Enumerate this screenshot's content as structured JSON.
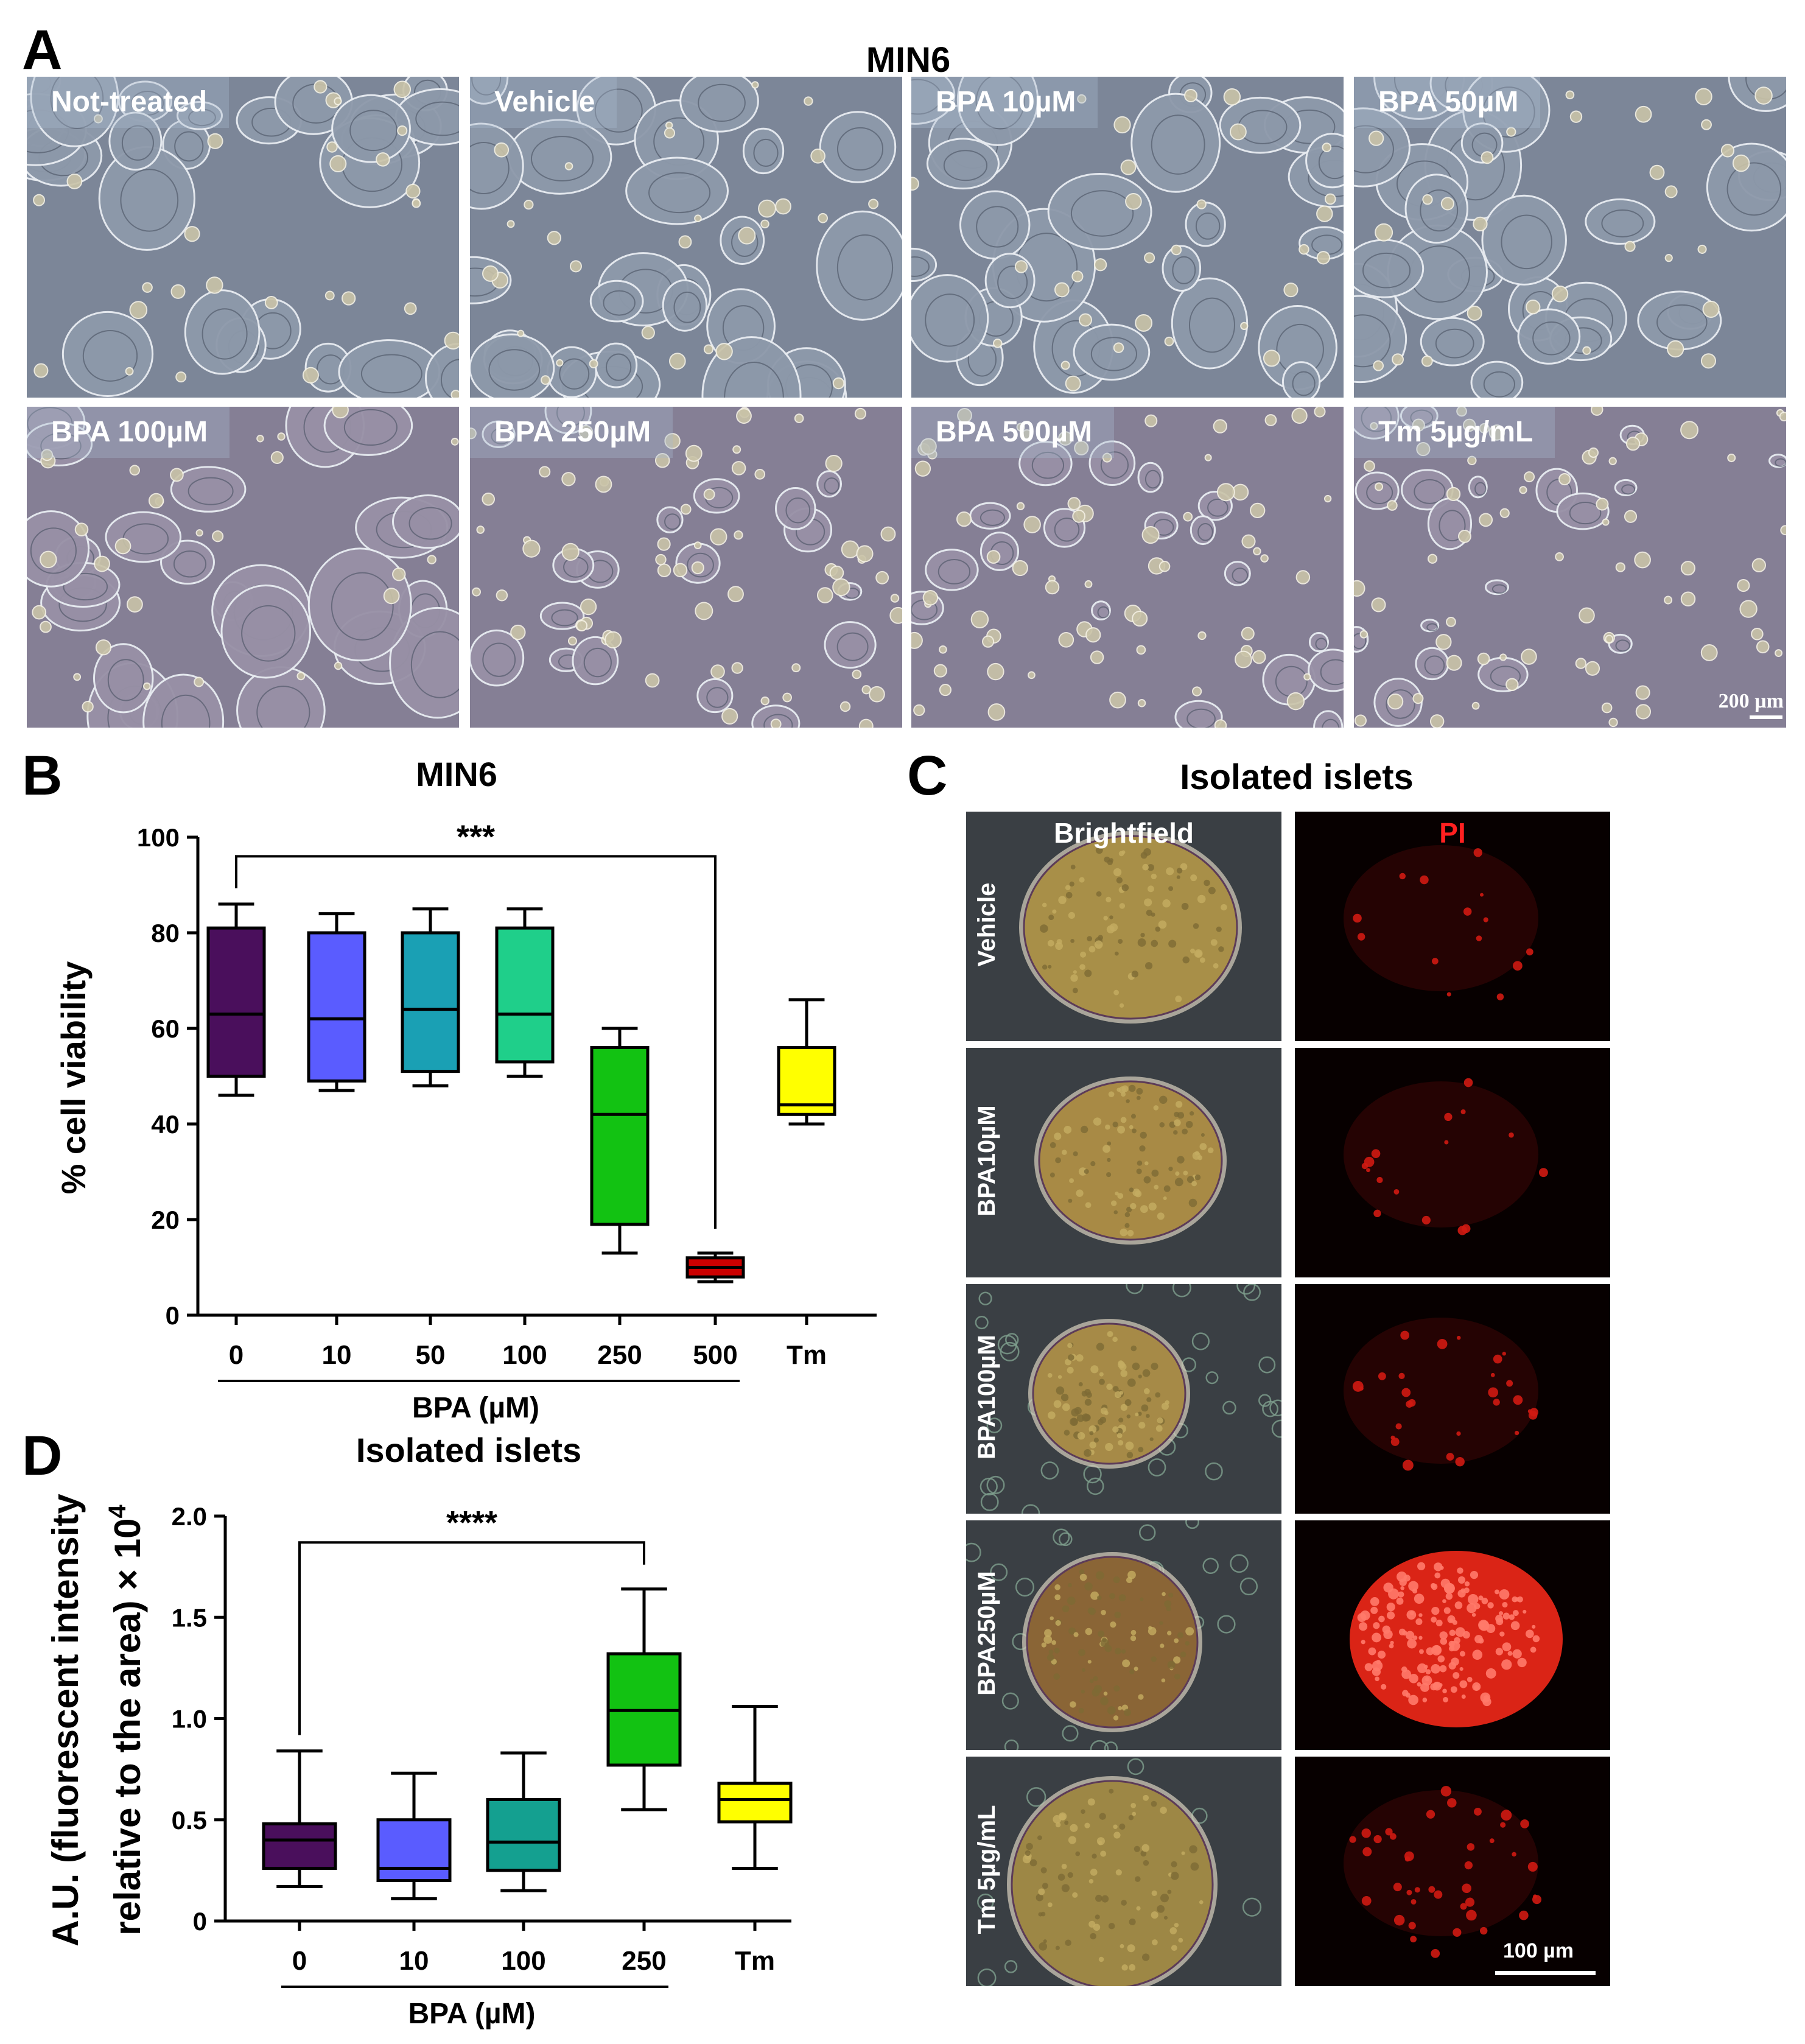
{
  "panel_A": {
    "letter": "A",
    "title": "MIN6",
    "image_labels": [
      "Not-treated",
      "Vehicle",
      "BPA 10µM",
      "BPA 50µM",
      "BPA 100µM",
      "BPA 250µM",
      "BPA 500µM",
      "Tm 5µg/mL"
    ],
    "scale_bar": "200 µm"
  },
  "panel_C": {
    "letter": "C",
    "title": "Isolated islets",
    "col_brightfield": "Brightfield",
    "col_pi": "PI",
    "rows": [
      "Vehicle",
      "BPA10µM",
      "BPA100µM",
      "BPA250µM",
      "Tm 5µg/mL"
    ],
    "scale_bar": "100 µm",
    "pi_color": "#ff2a1a"
  },
  "chart_data": [
    {
      "panel": "B",
      "type": "box",
      "title": "MIN6",
      "ylabel": "% cell viability",
      "xlabel": "BPA (µM)",
      "categories": [
        "0",
        "10",
        "50",
        "100",
        "250",
        "500",
        "Tm"
      ],
      "yticks": [
        "0",
        "20",
        "40",
        "60",
        "80",
        "100"
      ],
      "ylim": [
        0,
        100
      ],
      "boxes": [
        {
          "min": 46,
          "q1": 50,
          "median": 63,
          "q3": 81,
          "max": 86,
          "color": "#4a0f5c"
        },
        {
          "min": 47,
          "q1": 49,
          "median": 62,
          "q3": 80,
          "max": 84,
          "color": "#5a5cff"
        },
        {
          "min": 48,
          "q1": 51,
          "median": 64,
          "q3": 80,
          "max": 85,
          "color": "#1aa0b4"
        },
        {
          "min": 50,
          "q1": 53,
          "median": 63,
          "q3": 81,
          "max": 85,
          "color": "#1fcf8a"
        },
        {
          "min": 13,
          "q1": 19,
          "median": 42,
          "q3": 56,
          "max": 60,
          "color": "#12c212"
        },
        {
          "min": 7,
          "q1": 8,
          "median": 10,
          "q3": 12,
          "max": 13,
          "color": "#cc0000"
        },
        {
          "min": 40,
          "q1": 42,
          "median": 44,
          "q3": 56,
          "max": 66,
          "color": "#ffff00"
        }
      ],
      "significance": {
        "label": "***",
        "from": "0",
        "to": "500",
        "y": 96
      },
      "bracket_span": [
        "0",
        "500"
      ]
    },
    {
      "panel": "D",
      "type": "box",
      "title": "Isolated islets",
      "ylabel": "A.U. (fluorescent intensity\nrelative to the area) × 10⁴",
      "ylabel_line1": "A.U. (fluorescent intensity",
      "ylabel_line2": "relative to the area) × 10",
      "ylabel_exp": "4",
      "xlabel": "BPA (µM)",
      "categories": [
        "0",
        "10",
        "100",
        "250",
        "Tm"
      ],
      "yticks": [
        "0",
        "0.5",
        "1.0",
        "1.5",
        "2.0"
      ],
      "ylim": [
        0,
        2.0
      ],
      "boxes": [
        {
          "min": 0.17,
          "q1": 0.26,
          "median": 0.4,
          "q3": 0.48,
          "max": 0.84,
          "color": "#4a0f5c"
        },
        {
          "min": 0.11,
          "q1": 0.2,
          "median": 0.26,
          "q3": 0.5,
          "max": 0.73,
          "color": "#5a5cff"
        },
        {
          "min": 0.15,
          "q1": 0.25,
          "median": 0.39,
          "q3": 0.6,
          "max": 0.83,
          "color": "#14a090"
        },
        {
          "min": 0.55,
          "q1": 0.77,
          "median": 1.04,
          "q3": 1.32,
          "max": 1.64,
          "color": "#12c212"
        },
        {
          "min": 0.26,
          "q1": 0.49,
          "median": 0.6,
          "q3": 0.68,
          "max": 1.06,
          "color": "#ffff00"
        }
      ],
      "significance": {
        "label": "****",
        "from": "0",
        "to": "250",
        "y": 1.87
      },
      "bracket_span": [
        "0",
        "250"
      ]
    }
  ]
}
